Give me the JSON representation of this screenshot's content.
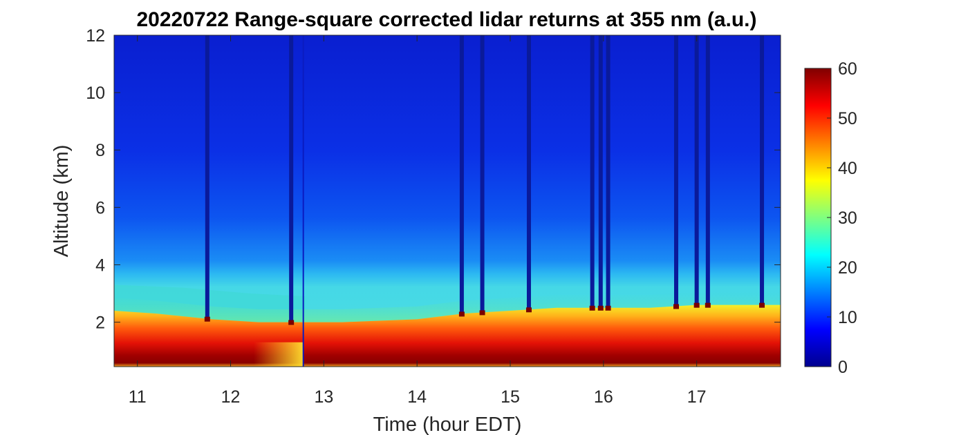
{
  "chart_data": {
    "type": "heatmap",
    "title": "20220722  Range-square corrected lidar returns at 355 nm (a.u.)",
    "xlabel": "Time (hour EDT)",
    "ylabel": "Altitude (km)",
    "xlim": [
      10.75,
      17.9
    ],
    "ylim": [
      0.45,
      12
    ],
    "x_ticks": [
      11,
      12,
      13,
      14,
      15,
      16,
      17
    ],
    "y_ticks": [
      2,
      4,
      6,
      8,
      10,
      12
    ],
    "colorbar": {
      "range": [
        0,
        60
      ],
      "ticks": [
        0,
        10,
        20,
        30,
        40,
        50,
        60
      ],
      "colormap": "jet"
    },
    "features": {
      "boundary_layer_top_km": [
        [
          10.75,
          2.4
        ],
        [
          11.2,
          2.3
        ],
        [
          11.8,
          2.1
        ],
        [
          12.3,
          2.0
        ],
        [
          12.8,
          2.0
        ],
        [
          13.2,
          2.0
        ],
        [
          14.0,
          2.1
        ],
        [
          14.5,
          2.3
        ],
        [
          15.0,
          2.4
        ],
        [
          15.5,
          2.5
        ],
        [
          16.0,
          2.5
        ],
        [
          16.5,
          2.5
        ],
        [
          17.0,
          2.6
        ],
        [
          17.5,
          2.6
        ],
        [
          17.9,
          2.6
        ]
      ],
      "residual_layer_top_km": [
        [
          10.75,
          3.3
        ],
        [
          11.5,
          3.2
        ],
        [
          12.2,
          3.0
        ],
        [
          12.8,
          2.9
        ]
      ],
      "cloud_columns_hour": [
        11.75,
        12.65,
        14.48,
        14.7,
        15.2,
        15.88,
        15.97,
        16.05,
        16.78,
        17.0,
        17.12,
        17.7
      ],
      "data_gap_hour": 12.78
    }
  }
}
